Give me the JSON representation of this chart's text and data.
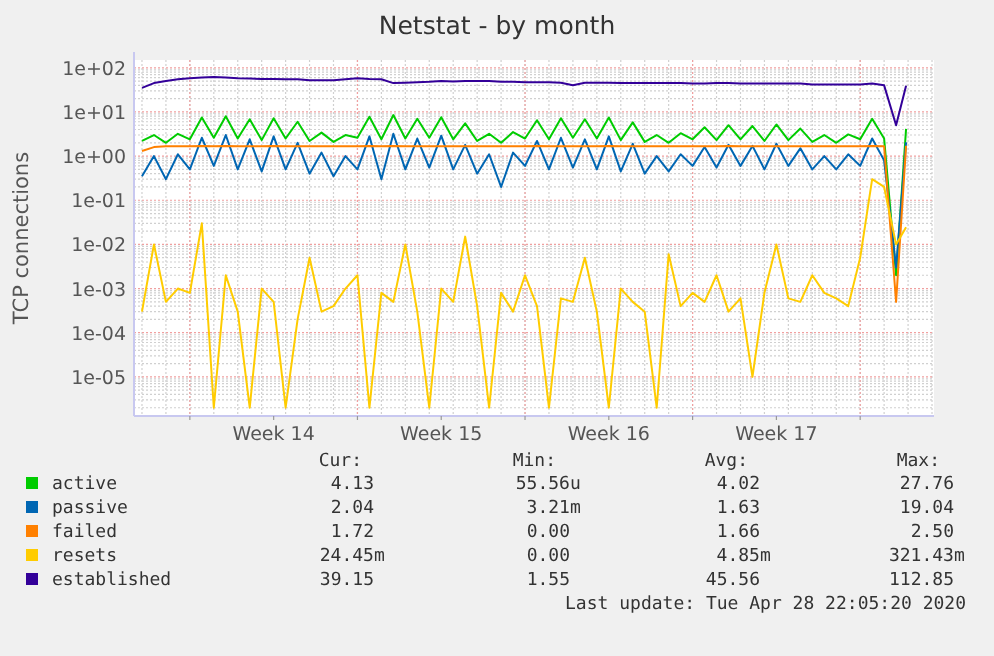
{
  "chart_data": {
    "type": "line",
    "title": "Netstat - by month",
    "ylabel": "TCP connections",
    "log": "y",
    "grid": true,
    "legend": "bottom",
    "line_style": "solid",
    "xlim": [
      "2020-03-27T16:00",
      "2020-04-30T02:00"
    ],
    "xticks": [
      {
        "value": "2020-03-30T00:00",
        "label": null
      },
      {
        "value": "2020-04-02T12:00",
        "label": "Week 14"
      },
      {
        "value": "2020-04-06T00:00",
        "label": null
      },
      {
        "value": "2020-04-09T12:00",
        "label": "Week 15"
      },
      {
        "value": "2020-04-13T00:00",
        "label": null
      },
      {
        "value": "2020-04-16T12:00",
        "label": "Week 16"
      },
      {
        "value": "2020-04-20T00:00",
        "label": null
      },
      {
        "value": "2020-04-23T12:00",
        "label": "Week 17"
      },
      {
        "value": "2020-04-27T00:00",
        "label": null
      }
    ],
    "ylim": [
      1.3e-06,
      150
    ],
    "yticks": [
      {
        "value": 1e-05,
        "label": "1e-05"
      },
      {
        "value": 0.0001,
        "label": "1e-04"
      },
      {
        "value": 0.001,
        "label": "1e-03"
      },
      {
        "value": 0.01,
        "label": "1e-02"
      },
      {
        "value": 0.1,
        "label": "1e-01"
      },
      {
        "value": 1,
        "label": "1e+00"
      },
      {
        "value": 10,
        "label": "1e+01"
      },
      {
        "value": 100,
        "label": "1e+02"
      }
    ],
    "x": [
      "2020-03-28T00:00",
      "2020-03-28T12:00",
      "2020-03-29T00:00",
      "2020-03-29T12:00",
      "2020-03-30T00:00",
      "2020-03-30T12:00",
      "2020-03-31T00:00",
      "2020-03-31T12:00",
      "2020-04-01T00:00",
      "2020-04-01T12:00",
      "2020-04-02T00:00",
      "2020-04-02T12:00",
      "2020-04-03T00:00",
      "2020-04-03T12:00",
      "2020-04-04T00:00",
      "2020-04-04T12:00",
      "2020-04-05T00:00",
      "2020-04-05T12:00",
      "2020-04-06T00:00",
      "2020-04-06T12:00",
      "2020-04-07T00:00",
      "2020-04-07T12:00",
      "2020-04-08T00:00",
      "2020-04-08T12:00",
      "2020-04-09T00:00",
      "2020-04-09T12:00",
      "2020-04-10T00:00",
      "2020-04-10T12:00",
      "2020-04-11T00:00",
      "2020-04-11T12:00",
      "2020-04-12T00:00",
      "2020-04-12T12:00",
      "2020-04-13T00:00",
      "2020-04-13T12:00",
      "2020-04-14T00:00",
      "2020-04-14T12:00",
      "2020-04-15T00:00",
      "2020-04-15T12:00",
      "2020-04-16T00:00",
      "2020-04-16T12:00",
      "2020-04-17T00:00",
      "2020-04-17T12:00",
      "2020-04-18T00:00",
      "2020-04-18T12:00",
      "2020-04-19T00:00",
      "2020-04-19T12:00",
      "2020-04-20T00:00",
      "2020-04-20T12:00",
      "2020-04-21T00:00",
      "2020-04-21T12:00",
      "2020-04-22T00:00",
      "2020-04-22T12:00",
      "2020-04-23T00:00",
      "2020-04-23T12:00",
      "2020-04-24T00:00",
      "2020-04-24T12:00",
      "2020-04-25T00:00",
      "2020-04-25T12:00",
      "2020-04-26T00:00",
      "2020-04-26T12:00",
      "2020-04-27T00:00",
      "2020-04-27T12:00",
      "2020-04-28T00:00",
      "2020-04-28T12:00",
      "2020-04-28T22:00"
    ],
    "series": [
      {
        "name": "active",
        "color": "#00cc00",
        "values": [
          2.2,
          3.0,
          2.0,
          3.2,
          2.4,
          7.5,
          2.6,
          8.0,
          2.5,
          6.8,
          2.3,
          7.2,
          2.5,
          6.0,
          2.2,
          3.4,
          2.1,
          3.0,
          2.6,
          7.8,
          2.4,
          8.5,
          2.5,
          7.0,
          2.6,
          7.6,
          2.4,
          5.5,
          2.2,
          3.2,
          2.0,
          3.5,
          2.5,
          6.5,
          2.4,
          7.2,
          2.6,
          6.8,
          2.5,
          7.5,
          2.3,
          5.8,
          2.1,
          3.0,
          2.0,
          3.3,
          2.4,
          4.5,
          2.3,
          5.0,
          2.4,
          4.8,
          2.2,
          5.2,
          2.3,
          4.2,
          2.1,
          3.0,
          2.0,
          3.1,
          2.4,
          7.0,
          2.5,
          0.002,
          4.13
        ]
      },
      {
        "name": "passive",
        "color": "#0066b3",
        "values": [
          0.35,
          1.0,
          0.3,
          1.1,
          0.5,
          2.6,
          0.6,
          3.0,
          0.5,
          2.4,
          0.45,
          2.8,
          0.5,
          2.0,
          0.4,
          1.2,
          0.35,
          1.0,
          0.5,
          2.8,
          0.3,
          3.2,
          0.5,
          2.5,
          0.55,
          2.9,
          0.5,
          1.8,
          0.4,
          1.1,
          0.2,
          1.2,
          0.6,
          2.2,
          0.5,
          2.6,
          0.55,
          2.4,
          0.5,
          2.8,
          0.45,
          1.9,
          0.4,
          1.0,
          0.45,
          1.1,
          0.6,
          1.6,
          0.55,
          1.8,
          0.6,
          1.7,
          0.5,
          1.9,
          0.6,
          1.5,
          0.5,
          1.0,
          0.5,
          1.1,
          0.6,
          2.5,
          0.8,
          0.003,
          2.04
        ]
      },
      {
        "name": "failed",
        "color": "#ff8000",
        "values": [
          1.3,
          1.6,
          1.66,
          1.66,
          1.66,
          1.7,
          1.66,
          1.7,
          1.66,
          1.66,
          1.66,
          1.7,
          1.66,
          1.66,
          1.66,
          1.66,
          1.66,
          1.66,
          1.66,
          1.7,
          1.66,
          1.7,
          1.66,
          1.66,
          1.66,
          1.66,
          1.66,
          1.66,
          1.66,
          1.66,
          1.66,
          1.66,
          1.66,
          1.7,
          1.66,
          1.66,
          1.66,
          1.66,
          1.66,
          1.7,
          1.66,
          1.66,
          1.66,
          1.66,
          1.66,
          1.66,
          1.66,
          1.66,
          1.66,
          1.7,
          1.66,
          1.66,
          1.66,
          1.66,
          1.66,
          1.66,
          1.66,
          1.66,
          1.66,
          1.66,
          1.66,
          1.7,
          1.66,
          0.0005,
          1.72
        ]
      },
      {
        "name": "resets",
        "color": "#ffcc00",
        "values": [
          0.0003,
          0.01,
          0.0005,
          0.001,
          0.0008,
          0.03,
          2e-06,
          0.002,
          0.0003,
          2e-06,
          0.001,
          0.0005,
          2e-06,
          0.0002,
          0.005,
          0.0003,
          0.0004,
          0.001,
          0.002,
          2e-06,
          0.0008,
          0.0005,
          0.01,
          0.0003,
          2e-06,
          0.001,
          0.0005,
          0.015,
          0.0004,
          2e-06,
          0.0008,
          0.0003,
          0.002,
          0.0004,
          2e-06,
          0.0006,
          0.0005,
          0.005,
          0.0003,
          2e-06,
          0.001,
          0.0005,
          0.0003,
          2e-06,
          0.006,
          0.0004,
          0.0008,
          0.0005,
          0.002,
          0.0003,
          0.0006,
          1e-05,
          0.0008,
          0.01,
          0.0006,
          0.0005,
          0.002,
          0.0008,
          0.0006,
          0.0004,
          0.005,
          0.3,
          0.2,
          0.01,
          0.02445
        ]
      },
      {
        "name": "established",
        "color": "#330099",
        "values": [
          35,
          45,
          50,
          55,
          58,
          60,
          62,
          60,
          58,
          57,
          56,
          56,
          55,
          55,
          52,
          52,
          52,
          55,
          58,
          56,
          55,
          45,
          46,
          47,
          48,
          50,
          49,
          50,
          50,
          50,
          48,
          48,
          47,
          47,
          47,
          46,
          40,
          46,
          46,
          46,
          45,
          45,
          45,
          45,
          45,
          45,
          44,
          44,
          45,
          45,
          44,
          44,
          44,
          44,
          44,
          44,
          42,
          42,
          42,
          42,
          42,
          44,
          40,
          5,
          39.15
        ]
      }
    ],
    "annotations": [
      "Cur:",
      "Min:",
      "Avg:",
      "Max:",
      "4.13",
      "55.56u",
      "4.02",
      "27.76",
      "2.04",
      "3.21m",
      "1.63",
      "19.04",
      "1.72",
      "0.00",
      "1.66",
      "2.50",
      "24.45m",
      "0.00",
      "4.85m",
      "321.43m",
      "39.15",
      "1.55",
      "45.56",
      "112.85",
      "Last update: Tue Apr 28 22:05:20 2020"
    ]
  }
}
